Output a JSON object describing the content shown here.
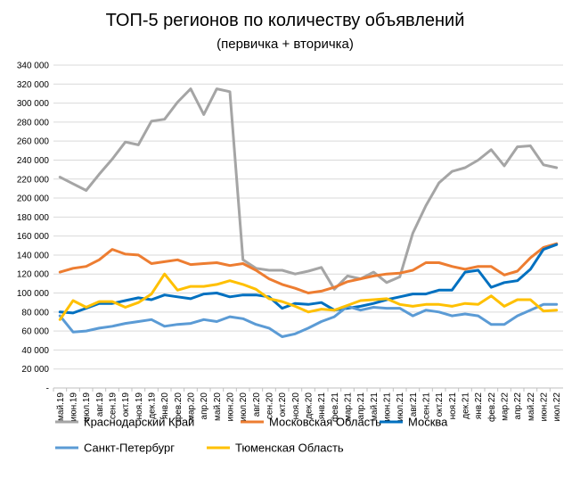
{
  "chart_data": {
    "type": "line",
    "title": "ТОП-5 регионов по количеству объявлений",
    "subtitle": "(первичка + вторичка)",
    "xlabel": "",
    "ylabel": "",
    "ylim": [
      0,
      340000
    ],
    "ytick_step": 20000,
    "ytick_labels": [
      "-",
      "20 000",
      "40 000",
      "60 000",
      "80 000",
      "100 000",
      "120 000",
      "140 000",
      "160 000",
      "180 000",
      "200 000",
      "220 000",
      "240 000",
      "260 000",
      "280 000",
      "300 000",
      "320 000",
      "340 000"
    ],
    "grid": true,
    "legend_position": "bottom",
    "categories": [
      "май.19",
      "июн.19",
      "июл.19",
      "авг.19",
      "сен.19",
      "окт.19",
      "ноя.19",
      "дек.19",
      "янв.20",
      "фев.20",
      "мар.20",
      "апр.20",
      "май.20",
      "июн.20",
      "июл.20",
      "авг.20",
      "сен.20",
      "окт.20",
      "ноя.20",
      "дек.20",
      "янв.21",
      "фев.21",
      "мар.21",
      "апр.21",
      "май.21",
      "июн.21",
      "июл.21",
      "авг.21",
      "сен.21",
      "окт.21",
      "ноя.21",
      "дек.21",
      "янв.22",
      "фев.22",
      "мар.22",
      "апр.22",
      "май.22",
      "июн.22",
      "июл.22"
    ],
    "series": [
      {
        "name": "Краснодарский Край",
        "color": "#a5a5a5",
        "values": [
          222000,
          215000,
          208000,
          225000,
          241000,
          259000,
          256000,
          281000,
          283000,
          301000,
          315000,
          288000,
          315000,
          312000,
          135000,
          126000,
          124000,
          124000,
          120000,
          123000,
          127000,
          104000,
          118000,
          115000,
          122000,
          111000,
          117000,
          163000,
          192000,
          216000,
          228000,
          232000,
          240000,
          251000,
          234000,
          254000,
          255000,
          235000,
          232000
        ]
      },
      {
        "name": "Московская Область",
        "color": "#ed7d31",
        "values": [
          122000,
          126000,
          128000,
          135000,
          146000,
          141000,
          140000,
          131000,
          133000,
          135000,
          130000,
          131000,
          132000,
          129000,
          131000,
          124000,
          115000,
          109000,
          105000,
          100000,
          102000,
          106000,
          112000,
          115000,
          118000,
          120000,
          121000,
          124000,
          132000,
          132000,
          128000,
          125000,
          128000,
          128000,
          119000,
          123000,
          137000,
          148000,
          152000
        ]
      },
      {
        "name": "Москва",
        "color": "#0070c0",
        "values": [
          80000,
          79000,
          84000,
          89000,
          89000,
          92000,
          95000,
          93000,
          98000,
          96000,
          94000,
          99000,
          100000,
          96000,
          98000,
          98000,
          96000,
          84000,
          89000,
          88000,
          90000,
          82000,
          84000,
          86000,
          89000,
          93000,
          96000,
          99000,
          99000,
          103000,
          103000,
          122000,
          124000,
          106000,
          111000,
          113000,
          125000,
          146000,
          151000
        ]
      },
      {
        "name": "Санкт-Петербург",
        "color": "#5b9bd5",
        "values": [
          76000,
          59000,
          60000,
          63000,
          65000,
          68000,
          70000,
          72000,
          65000,
          67000,
          68000,
          72000,
          70000,
          75000,
          73000,
          67000,
          63000,
          54000,
          57000,
          63000,
          70000,
          75000,
          86000,
          82000,
          85000,
          84000,
          84000,
          76000,
          82000,
          80000,
          76000,
          78000,
          76000,
          67000,
          67000,
          76000,
          82000,
          88000,
          88000
        ]
      },
      {
        "name": "Тюменская Область",
        "color": "#ffc000",
        "values": [
          72000,
          92000,
          85000,
          91000,
          91000,
          85000,
          90000,
          99000,
          120000,
          103000,
          107000,
          107000,
          109000,
          113000,
          109000,
          104000,
          94000,
          91000,
          86000,
          80000,
          83000,
          82000,
          87000,
          92000,
          93000,
          94000,
          88000,
          86000,
          88000,
          88000,
          86000,
          89000,
          88000,
          97000,
          86000,
          93000,
          93000,
          81000,
          82000
        ]
      }
    ]
  }
}
